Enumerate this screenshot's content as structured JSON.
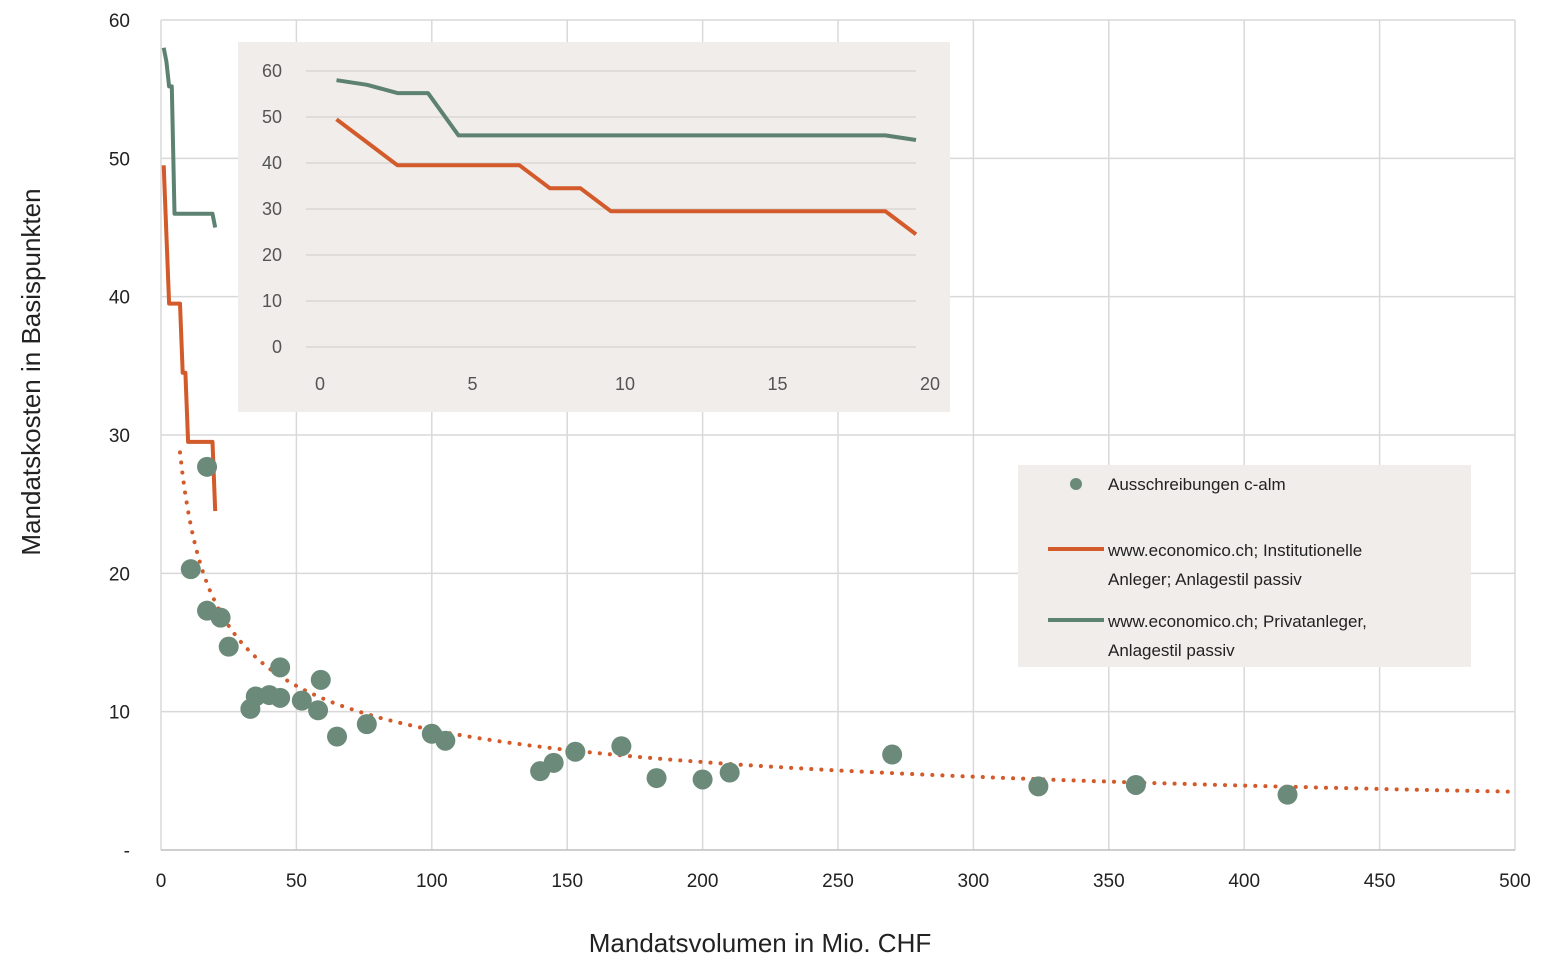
{
  "chart_data": [
    {
      "type": "scatter",
      "title": "",
      "xlabel": "Mandatsvolumen in Mio. CHF",
      "ylabel": "Mandatskosten in Basispunkten",
      "xlim": [
        0,
        500
      ],
      "ylim": [
        0,
        60
      ],
      "x_ticks": [
        "0",
        "50",
        "100",
        "150",
        "200",
        "250",
        "300",
        "350",
        "400",
        "450",
        "500"
      ],
      "y_ticks": [
        "-",
        "10",
        "20",
        "30",
        "40",
        "50",
        "60"
      ],
      "grid": true,
      "legend_position": "right",
      "colors": {
        "scatter": "#6b8a7a",
        "institutional": "#d35a2a",
        "private": "#5e8272",
        "trend": "#d35a2a",
        "grid": "#d9d9d9"
      },
      "series": [
        {
          "name": "Ausschreibungen c-alm",
          "type": "scatter",
          "points": [
            [
              17,
              27.7
            ],
            [
              11,
              20.3
            ],
            [
              17,
              17.3
            ],
            [
              22,
              16.8
            ],
            [
              25,
              14.7
            ],
            [
              33,
              10.2
            ],
            [
              35,
              11.1
            ],
            [
              40,
              11.2
            ],
            [
              44,
              11.0
            ],
            [
              44,
              13.2
            ],
            [
              52,
              10.8
            ],
            [
              58,
              10.1
            ],
            [
              59,
              12.3
            ],
            [
              65,
              8.2
            ],
            [
              76,
              9.1
            ],
            [
              100,
              8.4
            ],
            [
              105,
              7.9
            ],
            [
              140,
              5.7
            ],
            [
              145,
              6.3
            ],
            [
              153,
              7.1
            ],
            [
              170,
              7.5
            ],
            [
              183,
              5.2
            ],
            [
              200,
              5.1
            ],
            [
              210,
              5.6
            ],
            [
              270,
              6.9
            ],
            [
              324,
              4.6
            ],
            [
              360,
              4.7
            ],
            [
              416,
              4.0
            ]
          ]
        },
        {
          "name": "www.economico.ch; Institutionelle Anleger; Anlagestil passiv",
          "type": "line",
          "points": [
            [
              1,
              49.5
            ],
            [
              3,
              39.5
            ],
            [
              7,
              39.5
            ],
            [
              8,
              34.5
            ],
            [
              9,
              34.5
            ],
            [
              10,
              29.5
            ],
            [
              19,
              29.5
            ],
            [
              20,
              24.5
            ]
          ]
        },
        {
          "name": "www.economico.ch; Privatanleger, Anlagestil passiv",
          "type": "line",
          "points": [
            [
              1,
              58
            ],
            [
              2,
              57
            ],
            [
              3,
              55.2
            ],
            [
              4,
              55.2
            ],
            [
              5,
              46
            ],
            [
              19,
              46
            ],
            [
              20,
              45
            ]
          ]
        },
        {
          "type": "trendline",
          "model": "power",
          "coefficient": 69,
          "exponent": -0.45,
          "x_range": [
            7,
            500
          ]
        }
      ]
    },
    {
      "type": "line",
      "title": "",
      "xlim": [
        0,
        20
      ],
      "ylim": [
        0,
        60
      ],
      "x_ticks": [
        "0",
        "5",
        "10",
        "15",
        "20"
      ],
      "y_ticks": [
        "0",
        "10",
        "20",
        "30",
        "40",
        "50",
        "60"
      ],
      "grid": true,
      "series_ref": [
        "institutional",
        "private"
      ]
    }
  ],
  "legend": {
    "items": [
      {
        "label_lines": [
          "Ausschreibungen c-alm"
        ],
        "symbol": "dot"
      },
      {
        "label_lines": [
          "www.economico.ch; Institutionelle",
          "Anleger; Anlagestil passiv"
        ],
        "symbol": "line-orange"
      },
      {
        "label_lines": [
          "www.economico.ch; Privatanleger,",
          "Anlagestil passiv"
        ],
        "symbol": "line-green"
      }
    ]
  }
}
